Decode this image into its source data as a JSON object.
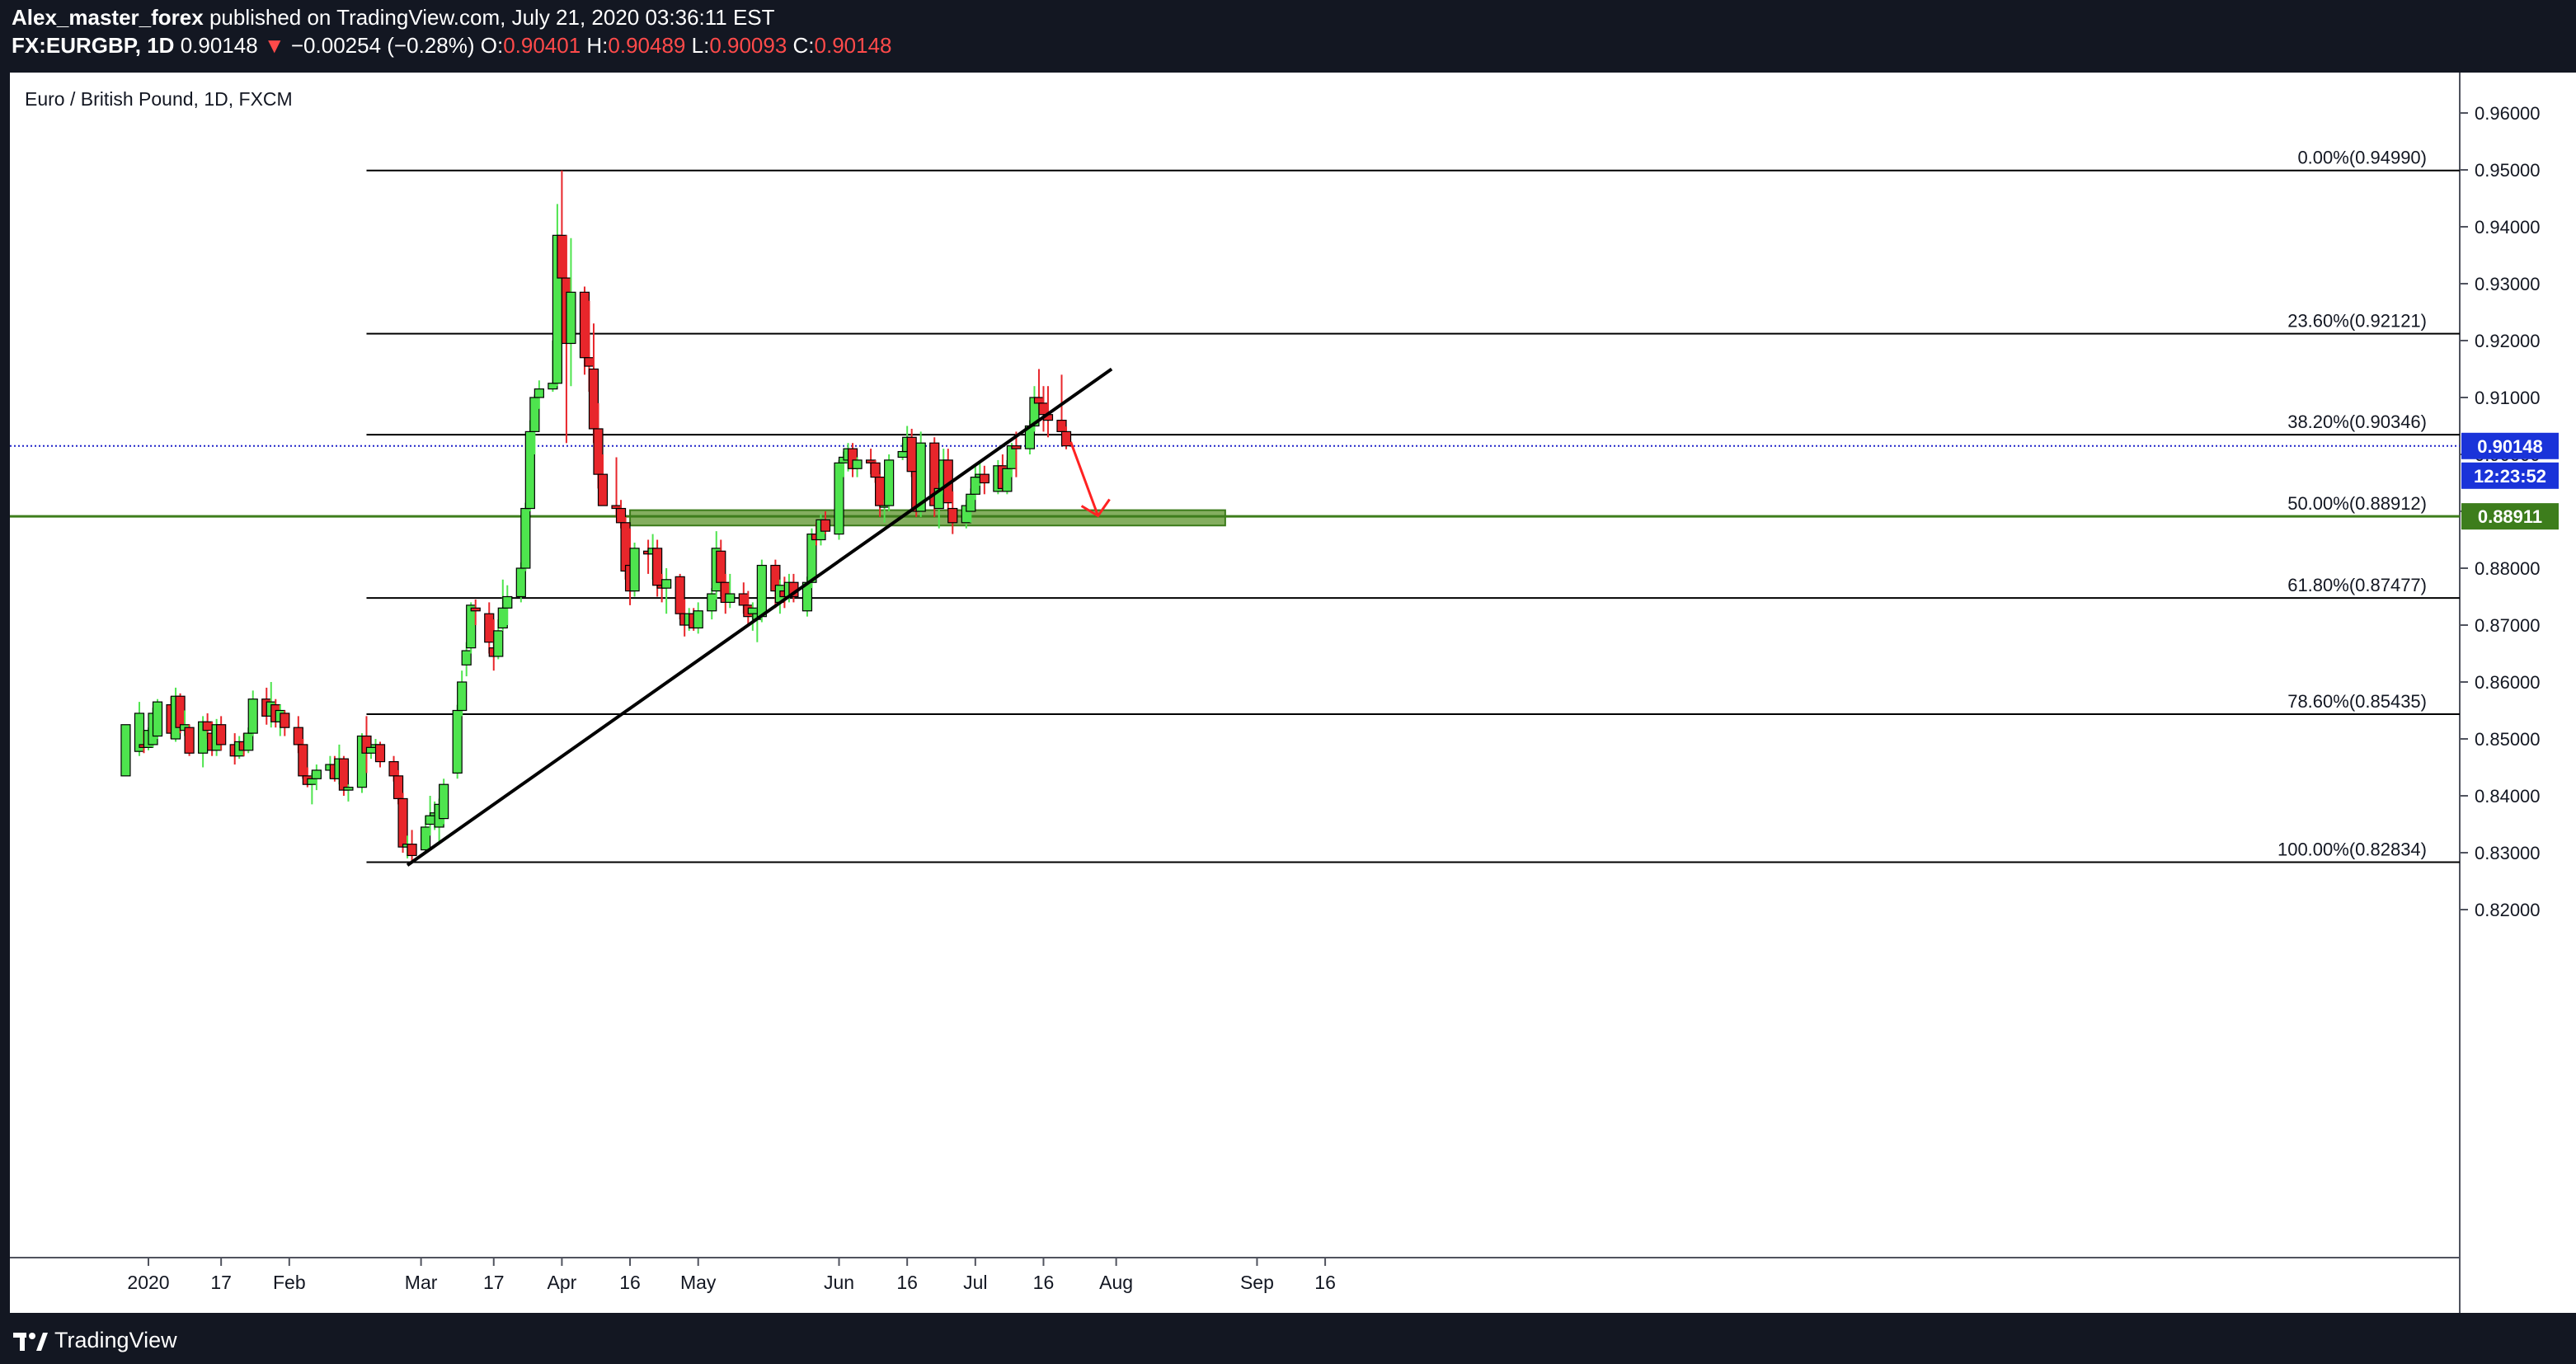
{
  "header": {
    "author": "Alex_master_forex",
    "published": "published on TradingView.com, July 21, 2020 03:36:11 EST",
    "symbol": "FX:EURGBP, 1D",
    "last": "0.90148",
    "arrow": "▼",
    "change": "−0.00254 (−0.28%)",
    "o_label": "O:",
    "o_value": "0.90401",
    "h_label": "H:",
    "h_value": "0.90489",
    "l_label": "L:",
    "l_value": "0.90093",
    "c_label": "C:",
    "c_value": "0.90148"
  },
  "footer": {
    "brand": "TradingView",
    "logo_icon": "tradingview-logo-icon"
  },
  "colors": {
    "up": "#4ee44e",
    "down": "#e8262b",
    "fib_line": "#000000",
    "price_line": "#1e22c8",
    "zone_fill": "#6fa043",
    "zone_line": "#3b7a1a",
    "label_blue": "#1a33d9",
    "label_green": "#3d7d1c",
    "projection_arrow": "#ff2222"
  },
  "chart_data": {
    "type": "candlestick",
    "title": "Euro / British Pound, 1D, FXCM",
    "ylim": [
      0.8155,
      0.965
    ],
    "xlabel": "",
    "ylabel": "",
    "y_ticks": [
      "0.96000",
      "0.95000",
      "0.94000",
      "0.93000",
      "0.92000",
      "0.91000",
      "0.90000",
      "0.89000",
      "0.88000",
      "0.87000",
      "0.86000",
      "0.85000",
      "0.84000",
      "0.83000",
      "0.82000"
    ],
    "x_ticks": [
      {
        "label": "2020",
        "date": "2020-01-01"
      },
      {
        "label": "17",
        "date": "2020-01-17"
      },
      {
        "label": "Feb",
        "date": "2020-02-01"
      },
      {
        "label": "Mar",
        "date": "2020-03-01"
      },
      {
        "label": "17",
        "date": "2020-03-17"
      },
      {
        "label": "Apr",
        "date": "2020-04-01"
      },
      {
        "label": "16",
        "date": "2020-04-16"
      },
      {
        "label": "May",
        "date": "2020-05-01"
      },
      {
        "label": "Jun",
        "date": "2020-06-01"
      },
      {
        "label": "16",
        "date": "2020-06-16"
      },
      {
        "label": "Jul",
        "date": "2020-07-01"
      },
      {
        "label": "16",
        "date": "2020-07-16"
      },
      {
        "label": "Aug",
        "date": "2020-08-01"
      },
      {
        "label": "Sep",
        "date": "2020-09-01"
      },
      {
        "label": "16",
        "date": "2020-09-16"
      }
    ],
    "fib_levels": [
      {
        "label": "0.00%(0.94990)",
        "value": 0.9499
      },
      {
        "label": "23.60%(0.92121)",
        "value": 0.92121
      },
      {
        "label": "38.20%(0.90346)",
        "value": 0.90346
      },
      {
        "label": "50.00%(0.88912)",
        "value": 0.88912
      },
      {
        "label": "61.80%(0.87477)",
        "value": 0.87477
      },
      {
        "label": "78.60%(0.85435)",
        "value": 0.85435
      },
      {
        "label": "100.00%(0.82834)",
        "value": 0.82834
      }
    ],
    "fib_start_date": "2020-02-18",
    "support_line": {
      "value": 0.88911,
      "label": "0.88911"
    },
    "current_price": {
      "value": 0.90148,
      "label": "0.90148",
      "countdown": "12:23:52"
    },
    "support_zone": {
      "from": "2020-04-16",
      "to": "2020-08-25",
      "low": 0.8875,
      "high": 0.8902
    },
    "trendline": {
      "points": [
        [
          "2020-02-27",
          0.8278
        ],
        [
          "2020-07-31",
          0.915
        ]
      ]
    },
    "projection_arrow": {
      "from": [
        "2020-07-22",
        0.9022
      ],
      "to": [
        "2020-07-28",
        0.8892
      ]
    },
    "candles": [
      [
        "2019-12-27",
        0.8435,
        0.8525,
        0.8435,
        0.8525
      ],
      [
        "2019-12-30",
        0.8478,
        0.8565,
        0.847,
        0.8545
      ],
      [
        "2019-12-31",
        0.849,
        0.8515,
        0.8475,
        0.8485
      ],
      [
        "2020-01-01",
        0.8485,
        0.852,
        0.848,
        0.8515
      ],
      [
        "2020-01-02",
        0.849,
        0.8555,
        0.8485,
        0.8545
      ],
      [
        "2020-01-03",
        0.8505,
        0.857,
        0.85,
        0.8565
      ],
      [
        "2020-01-06",
        0.856,
        0.8575,
        0.85,
        0.851
      ],
      [
        "2020-01-07",
        0.85,
        0.859,
        0.8495,
        0.8575
      ],
      [
        "2020-01-08",
        0.8575,
        0.858,
        0.851,
        0.852
      ],
      [
        "2020-01-09",
        0.8515,
        0.855,
        0.8505,
        0.8525
      ],
      [
        "2020-01-10",
        0.852,
        0.8525,
        0.847,
        0.8475
      ],
      [
        "2020-01-13",
        0.8475,
        0.854,
        0.845,
        0.853
      ],
      [
        "2020-01-14",
        0.853,
        0.8545,
        0.85,
        0.8515
      ],
      [
        "2020-01-15",
        0.851,
        0.853,
        0.847,
        0.848
      ],
      [
        "2020-01-16",
        0.848,
        0.8535,
        0.847,
        0.8525
      ],
      [
        "2020-01-17",
        0.8525,
        0.854,
        0.848,
        0.849
      ],
      [
        "2020-01-20",
        0.849,
        0.851,
        0.8455,
        0.847
      ],
      [
        "2020-01-21",
        0.847,
        0.8505,
        0.8465,
        0.8495
      ],
      [
        "2020-01-22",
        0.8495,
        0.851,
        0.847,
        0.848
      ],
      [
        "2020-01-23",
        0.848,
        0.852,
        0.8475,
        0.851
      ],
      [
        "2020-01-24",
        0.851,
        0.8585,
        0.8505,
        0.857
      ],
      [
        "2020-01-27",
        0.857,
        0.859,
        0.8525,
        0.854
      ],
      [
        "2020-01-28",
        0.854,
        0.86,
        0.852,
        0.8565
      ],
      [
        "2020-01-29",
        0.856,
        0.857,
        0.852,
        0.853
      ],
      [
        "2020-01-30",
        0.853,
        0.856,
        0.8505,
        0.855
      ],
      [
        "2020-01-31",
        0.8545,
        0.855,
        0.8505,
        0.852
      ],
      [
        "2020-02-03",
        0.852,
        0.854,
        0.8475,
        0.849
      ],
      [
        "2020-02-04",
        0.849,
        0.85,
        0.843,
        0.8435
      ],
      [
        "2020-02-05",
        0.8435,
        0.845,
        0.8415,
        0.842
      ],
      [
        "2020-02-06",
        0.842,
        0.844,
        0.8385,
        0.843
      ],
      [
        "2020-02-07",
        0.843,
        0.8455,
        0.841,
        0.8445
      ],
      [
        "2020-02-10",
        0.8445,
        0.847,
        0.843,
        0.8455
      ],
      [
        "2020-02-11",
        0.8455,
        0.847,
        0.8425,
        0.843
      ],
      [
        "2020-02-12",
        0.843,
        0.849,
        0.842,
        0.8465
      ],
      [
        "2020-02-13",
        0.8465,
        0.847,
        0.84,
        0.841
      ],
      [
        "2020-02-14",
        0.841,
        0.842,
        0.839,
        0.8415
      ],
      [
        "2020-02-17",
        0.8415,
        0.851,
        0.8405,
        0.8505
      ],
      [
        "2020-02-18",
        0.8505,
        0.854,
        0.844,
        0.8475
      ],
      [
        "2020-02-19",
        0.8475,
        0.849,
        0.8465,
        0.8485
      ],
      [
        "2020-02-20",
        0.8485,
        0.85,
        0.8475,
        0.849
      ],
      [
        "2020-02-21",
        0.849,
        0.8495,
        0.845,
        0.846
      ],
      [
        "2020-02-24",
        0.846,
        0.847,
        0.8425,
        0.8435
      ],
      [
        "2020-02-25",
        0.8435,
        0.8445,
        0.8385,
        0.8395
      ],
      [
        "2020-02-26",
        0.8395,
        0.8405,
        0.83,
        0.831
      ],
      [
        "2020-02-27",
        0.831,
        0.833,
        0.829,
        0.8315
      ],
      [
        "2020-02-28",
        0.8315,
        0.834,
        0.8283,
        0.8295
      ],
      [
        "2020-03-02",
        0.8305,
        0.8365,
        0.83,
        0.8345
      ],
      [
        "2020-03-03",
        0.835,
        0.84,
        0.833,
        0.8365
      ],
      [
        "2020-03-04",
        0.8365,
        0.839,
        0.834,
        0.837
      ],
      [
        "2020-03-05",
        0.8345,
        0.8395,
        0.832,
        0.8385
      ],
      [
        "2020-03-06",
        0.836,
        0.843,
        0.835,
        0.842
      ],
      [
        "2020-03-09",
        0.844,
        0.856,
        0.843,
        0.855
      ],
      [
        "2020-03-10",
        0.855,
        0.862,
        0.854,
        0.86
      ],
      [
        "2020-03-11",
        0.863,
        0.867,
        0.861,
        0.8655
      ],
      [
        "2020-03-12",
        0.866,
        0.874,
        0.865,
        0.8735
      ],
      [
        "2020-03-13",
        0.873,
        0.8745,
        0.87,
        0.8725
      ],
      [
        "2020-03-16",
        0.872,
        0.874,
        0.865,
        0.867
      ],
      [
        "2020-03-17",
        0.866,
        0.871,
        0.862,
        0.8645
      ],
      [
        "2020-03-18",
        0.8645,
        0.871,
        0.864,
        0.869
      ],
      [
        "2020-03-19",
        0.8695,
        0.878,
        0.869,
        0.873
      ],
      [
        "2020-03-20",
        0.873,
        0.877,
        0.87,
        0.875
      ],
      [
        "2020-03-23",
        0.875,
        0.881,
        0.874,
        0.88
      ],
      [
        "2020-03-24",
        0.88,
        0.8915,
        0.8795,
        0.8905
      ],
      [
        "2020-03-25",
        0.8905,
        0.906,
        0.89,
        0.904
      ],
      [
        "2020-03-26",
        0.904,
        0.9105,
        0.9,
        0.91
      ],
      [
        "2020-03-27",
        0.91,
        0.913,
        0.908,
        0.9115
      ],
      [
        "2020-03-30",
        0.9115,
        0.92,
        0.911,
        0.9125
      ],
      [
        "2020-03-31",
        0.9125,
        0.944,
        0.912,
        0.9385
      ],
      [
        "2020-04-01",
        0.9385,
        0.9499,
        0.928,
        0.931
      ],
      [
        "2020-04-02",
        0.931,
        0.9385,
        0.902,
        0.9195
      ],
      [
        "2020-04-03",
        0.9195,
        0.938,
        0.912,
        0.9285
      ],
      [
        "2020-04-06",
        0.9285,
        0.9295,
        0.914,
        0.917
      ],
      [
        "2020-04-07",
        0.917,
        0.927,
        0.911,
        0.9155
      ],
      [
        "2020-04-08",
        0.915,
        0.923,
        0.902,
        0.9045
      ],
      [
        "2020-04-09",
        0.9045,
        0.909,
        0.894,
        0.8965
      ],
      [
        "2020-04-10",
        0.8965,
        0.9,
        0.892,
        0.891
      ],
      [
        "2020-04-13",
        0.891,
        0.8995,
        0.889,
        0.8905
      ],
      [
        "2020-04-14",
        0.8905,
        0.892,
        0.887,
        0.888
      ],
      [
        "2020-04-15",
        0.888,
        0.889,
        0.878,
        0.8795
      ],
      [
        "2020-04-16",
        0.8805,
        0.887,
        0.8735,
        0.876
      ],
      [
        "2020-04-17",
        0.876,
        0.8845,
        0.875,
        0.8835
      ],
      [
        "2020-04-20",
        0.883,
        0.885,
        0.879,
        0.8825
      ],
      [
        "2020-04-21",
        0.8825,
        0.886,
        0.878,
        0.8835
      ],
      [
        "2020-04-22",
        0.8835,
        0.885,
        0.875,
        0.877
      ],
      [
        "2020-04-23",
        0.877,
        0.879,
        0.874,
        0.8765
      ],
      [
        "2020-04-24",
        0.8765,
        0.88,
        0.872,
        0.878
      ],
      [
        "2020-04-27",
        0.8785,
        0.879,
        0.871,
        0.872
      ],
      [
        "2020-04-28",
        0.872,
        0.8745,
        0.868,
        0.87
      ],
      [
        "2020-04-29",
        0.87,
        0.873,
        0.869,
        0.872
      ],
      [
        "2020-04-30",
        0.872,
        0.873,
        0.869,
        0.8695
      ],
      [
        "2020-05-01",
        0.8695,
        0.874,
        0.8685,
        0.8725
      ],
      [
        "2020-05-04",
        0.8725,
        0.8765,
        0.871,
        0.8755
      ],
      [
        "2020-05-05",
        0.876,
        0.8865,
        0.8745,
        0.8835
      ],
      [
        "2020-05-06",
        0.883,
        0.885,
        0.875,
        0.8775
      ],
      [
        "2020-05-07",
        0.8775,
        0.879,
        0.872,
        0.874
      ],
      [
        "2020-05-08",
        0.874,
        0.879,
        0.873,
        0.8755
      ],
      [
        "2020-05-11",
        0.8755,
        0.8775,
        0.872,
        0.8735
      ],
      [
        "2020-05-12",
        0.8735,
        0.876,
        0.87,
        0.8715
      ],
      [
        "2020-05-13",
        0.872,
        0.874,
        0.869,
        0.873
      ],
      [
        "2020-05-14",
        0.871,
        0.873,
        0.867,
        0.872
      ],
      [
        "2020-05-15",
        0.8715,
        0.8815,
        0.8705,
        0.8805
      ],
      [
        "2020-05-18",
        0.8805,
        0.8815,
        0.873,
        0.876
      ],
      [
        "2020-05-19",
        0.874,
        0.878,
        0.872,
        0.877
      ],
      [
        "2020-05-20",
        0.876,
        0.8785,
        0.873,
        0.875
      ],
      [
        "2020-05-21",
        0.875,
        0.879,
        0.874,
        0.8775
      ],
      [
        "2020-05-22",
        0.8775,
        0.879,
        0.874,
        0.875
      ],
      [
        "2020-05-25",
        0.8725,
        0.8785,
        0.8715,
        0.8775
      ],
      [
        "2020-05-26",
        0.8775,
        0.887,
        0.8765,
        0.886
      ],
      [
        "2020-05-27",
        0.886,
        0.888,
        0.884,
        0.885
      ],
      [
        "2020-05-28",
        0.885,
        0.8895,
        0.884,
        0.8885
      ],
      [
        "2020-05-29",
        0.8885,
        0.89,
        0.886,
        0.8865
      ],
      [
        "2020-06-01",
        0.886,
        0.899,
        0.885,
        0.8985
      ],
      [
        "2020-06-02",
        0.8985,
        0.9005,
        0.896,
        0.8995
      ],
      [
        "2020-06-03",
        0.899,
        0.902,
        0.897,
        0.901
      ],
      [
        "2020-06-04",
        0.901,
        0.902,
        0.896,
        0.8975
      ],
      [
        "2020-06-05",
        0.8975,
        0.8995,
        0.896,
        0.899
      ],
      [
        "2020-06-08",
        0.899,
        0.901,
        0.8965,
        0.8985
      ],
      [
        "2020-06-09",
        0.8985,
        0.899,
        0.895,
        0.896
      ],
      [
        "2020-06-10",
        0.896,
        0.8965,
        0.889,
        0.891
      ],
      [
        "2020-06-11",
        0.891,
        0.892,
        0.888,
        0.891
      ],
      [
        "2020-06-12",
        0.891,
        0.9,
        0.89,
        0.899
      ],
      [
        "2020-06-15",
        0.8995,
        0.902,
        0.899,
        0.9005
      ],
      [
        "2020-06-16",
        0.9005,
        0.905,
        0.9,
        0.903
      ],
      [
        "2020-06-17",
        0.903,
        0.9045,
        0.896,
        0.897
      ],
      [
        "2020-06-18",
        0.897,
        0.899,
        0.889,
        0.89
      ],
      [
        "2020-06-19",
        0.89,
        0.904,
        0.889,
        0.902
      ],
      [
        "2020-06-22",
        0.902,
        0.903,
        0.889,
        0.891
      ],
      [
        "2020-06-23",
        0.8905,
        0.895,
        0.887,
        0.894
      ],
      [
        "2020-06-24",
        0.894,
        0.901,
        0.893,
        0.899
      ],
      [
        "2020-06-25",
        0.899,
        0.901,
        0.89,
        0.8915
      ],
      [
        "2020-06-26",
        0.8905,
        0.8935,
        0.886,
        0.888
      ],
      [
        "2020-06-29",
        0.888,
        0.892,
        0.887,
        0.891
      ],
      [
        "2020-06-30",
        0.89,
        0.894,
        0.888,
        0.893
      ],
      [
        "2020-07-01",
        0.893,
        0.898,
        0.892,
        0.896
      ],
      [
        "2020-07-02",
        0.896,
        0.8985,
        0.8945,
        0.8965
      ],
      [
        "2020-07-03",
        0.8965,
        0.898,
        0.893,
        0.895
      ],
      [
        "2020-07-06",
        0.8935,
        0.899,
        0.893,
        0.898
      ],
      [
        "2020-07-07",
        0.898,
        0.9,
        0.8935,
        0.894
      ],
      [
        "2020-07-08",
        0.8935,
        0.899,
        0.893,
        0.8975
      ],
      [
        "2020-07-09",
        0.8975,
        0.902,
        0.896,
        0.9015
      ],
      [
        "2020-07-10",
        0.9015,
        0.904,
        0.896,
        0.901
      ],
      [
        "2020-07-13",
        0.901,
        0.906,
        0.9,
        0.905
      ],
      [
        "2020-07-14",
        0.905,
        0.912,
        0.904,
        0.91
      ],
      [
        "2020-07-15",
        0.91,
        0.915,
        0.908,
        0.909
      ],
      [
        "2020-07-16",
        0.909,
        0.912,
        0.904,
        0.907
      ],
      [
        "2020-07-17",
        0.907,
        0.912,
        0.903,
        0.906
      ],
      [
        "2020-07-20",
        0.906,
        0.914,
        0.9045,
        0.904
      ],
      [
        "2020-07-21",
        0.904,
        0.9049,
        0.9009,
        0.9015
      ]
    ]
  }
}
